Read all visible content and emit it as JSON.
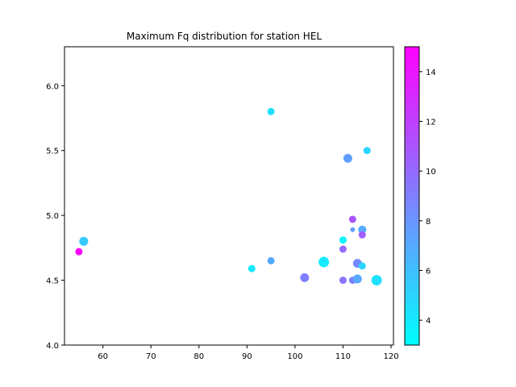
{
  "chart_data": {
    "type": "scatter",
    "title": "Maximum Fq distribution for station HEL",
    "xlabel": "",
    "ylabel": "",
    "xlim": [
      52,
      120.5
    ],
    "ylim": [
      4.0,
      6.3
    ],
    "x_ticks": [
      60,
      70,
      80,
      90,
      100,
      110,
      120
    ],
    "y_ticks": [
      4.0,
      4.5,
      5.0,
      5.5,
      6.0
    ],
    "x_tick_labels": [
      "60",
      "70",
      "80",
      "90",
      "100",
      "110",
      "120"
    ],
    "y_tick_labels": [
      "4.0",
      "4.5",
      "5.0",
      "5.5",
      "6.0"
    ],
    "colorbar": {
      "min": 3,
      "max": 15,
      "ticks": [
        4,
        6,
        8,
        10,
        12,
        14
      ],
      "tick_labels": [
        "4",
        "6",
        "8",
        "10",
        "12",
        "14"
      ],
      "colormap": "cool",
      "colors": [
        "#00ffff",
        "#ff00ff"
      ]
    },
    "points": [
      {
        "x": 55,
        "y": 4.72,
        "c": 15,
        "s": 7
      },
      {
        "x": 56,
        "y": 4.8,
        "c": 5.5,
        "s": 9
      },
      {
        "x": 91,
        "y": 4.59,
        "c": 4.0,
        "s": 7
      },
      {
        "x": 95,
        "y": 5.8,
        "c": 4.5,
        "s": 7
      },
      {
        "x": 95,
        "y": 4.65,
        "c": 7.0,
        "s": 7
      },
      {
        "x": 102,
        "y": 4.52,
        "c": 9.0,
        "s": 9
      },
      {
        "x": 106,
        "y": 4.64,
        "c": 4.0,
        "s": 11
      },
      {
        "x": 110,
        "y": 4.81,
        "c": 3.5,
        "s": 7
      },
      {
        "x": 110,
        "y": 4.74,
        "c": 10.0,
        "s": 7
      },
      {
        "x": 110,
        "y": 4.5,
        "c": 9.5,
        "s": 7
      },
      {
        "x": 111,
        "y": 5.44,
        "c": 7.5,
        "s": 9
      },
      {
        "x": 112,
        "y": 4.97,
        "c": 11.0,
        "s": 7
      },
      {
        "x": 112,
        "y": 4.89,
        "c": 7.5,
        "s": 4
      },
      {
        "x": 112,
        "y": 4.5,
        "c": 9.0,
        "s": 7
      },
      {
        "x": 113,
        "y": 4.63,
        "c": 8.5,
        "s": 9
      },
      {
        "x": 113,
        "y": 4.51,
        "c": 7.0,
        "s": 9
      },
      {
        "x": 114,
        "y": 4.89,
        "c": 7.0,
        "s": 8
      },
      {
        "x": 114,
        "y": 4.85,
        "c": 10.5,
        "s": 7
      },
      {
        "x": 114,
        "y": 4.61,
        "c": 5.0,
        "s": 7
      },
      {
        "x": 115,
        "y": 5.5,
        "c": 5.0,
        "s": 7
      },
      {
        "x": 117,
        "y": 4.5,
        "c": 4.5,
        "s": 11
      }
    ]
  }
}
